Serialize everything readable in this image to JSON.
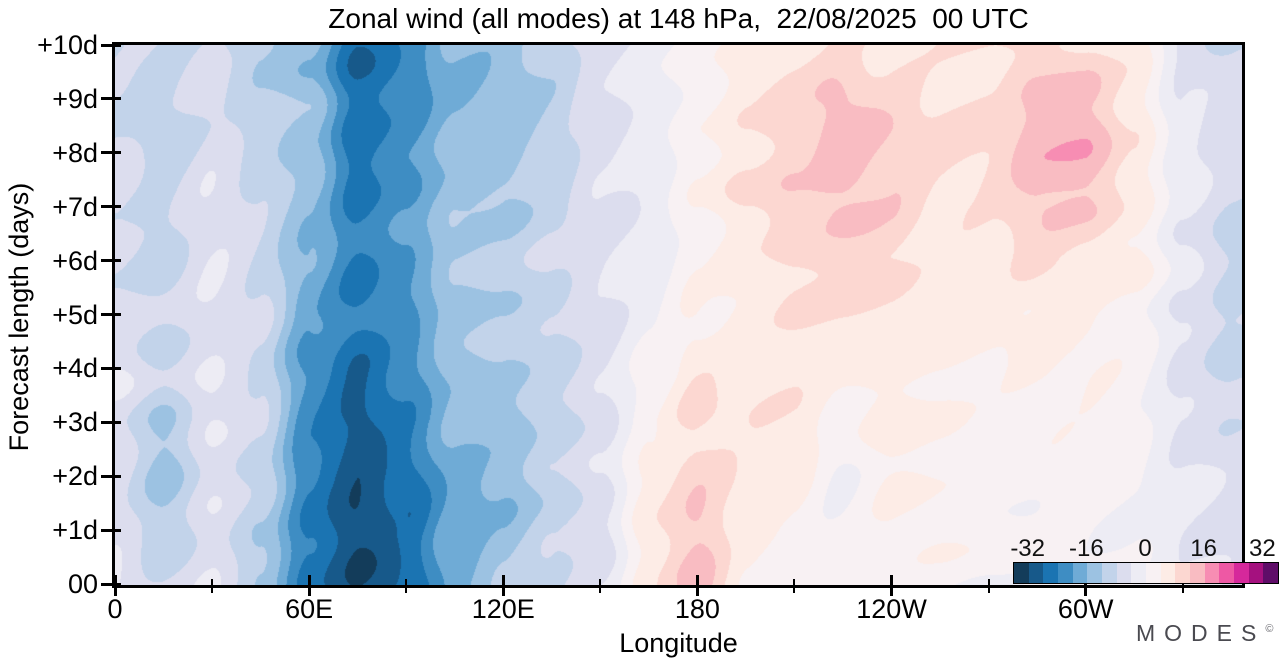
{
  "title": "Zonal wind (all modes) at 148 hPa,  22/08/2025  00 UTC",
  "branding": {
    "logo_text": "MODES",
    "logo_mark": "©"
  },
  "chart_data": {
    "type": "heatmap",
    "subtype": "filled-contour-hovmoller",
    "title": "Zonal wind (all modes) at 148 hPa,  22/08/2025  00 UTC",
    "xlabel": "Longitude",
    "ylabel": "Forecast length (days)",
    "xlim": [
      0,
      348
    ],
    "ylim": [
      0,
      10
    ],
    "grid_lines": false,
    "x_ticks": [
      {
        "lon": 0,
        "label": "0"
      },
      {
        "lon": 60,
        "label": "60E"
      },
      {
        "lon": 120,
        "label": "120E"
      },
      {
        "lon": 180,
        "label": "180"
      },
      {
        "lon": 240,
        "label": "120W"
      },
      {
        "lon": 300,
        "label": "60W"
      }
    ],
    "x_minor_ticks": [
      30,
      90,
      150,
      210,
      270,
      330
    ],
    "y_ticks": [
      {
        "day": 10,
        "label": "+10d"
      },
      {
        "day": 9,
        "label": "+9d"
      },
      {
        "day": 8,
        "label": "+8d"
      },
      {
        "day": 7,
        "label": "+7d"
      },
      {
        "day": 6,
        "label": "+6d"
      },
      {
        "day": 5,
        "label": "+5d"
      },
      {
        "day": 4,
        "label": "+4d"
      },
      {
        "day": 3,
        "label": "+3d"
      },
      {
        "day": 2,
        "label": "+2d"
      },
      {
        "day": 1,
        "label": "+1d"
      },
      {
        "day": 0,
        "label": "00"
      }
    ],
    "levels": {
      "min": -36,
      "max": 36,
      "step": 4
    },
    "palette": [
      "#133c5a",
      "#17598a",
      "#1b74b2",
      "#3e8dc3",
      "#6fabd6",
      "#9cc2e2",
      "#c2d3ea",
      "#dcddee",
      "#edecf4",
      "#f8f1f3",
      "#fdece6",
      "#fcd7d1",
      "#f9bcc2",
      "#f78db3",
      "#ee58a4",
      "#d6289b",
      "#a5117f",
      "#5f0d68"
    ],
    "colorbar": {
      "ticks": [
        -32,
        -16,
        0,
        16,
        32
      ],
      "labels": [
        "-32",
        "-16",
        "0",
        "16",
        "32"
      ],
      "position": "inset-bottom-right"
    },
    "grid": {
      "lons": [
        0,
        15,
        30,
        45,
        60,
        75,
        90,
        105,
        120,
        135,
        150,
        165,
        180,
        195,
        210,
        225,
        240,
        255,
        270,
        285,
        300,
        315,
        330,
        345
      ],
      "days": [
        0,
        1,
        2,
        3,
        4,
        5,
        6,
        7,
        8,
        9,
        10
      ],
      "values": [
        [
          -4,
          -8,
          -4,
          -12,
          -25,
          -31,
          -28,
          -17,
          -13,
          -8,
          -4,
          6,
          13,
          4,
          3,
          2,
          2,
          2,
          1,
          1,
          0,
          -1,
          -3,
          -4
        ],
        [
          -5,
          -11,
          -5,
          -12,
          -25,
          -33,
          -27,
          -18,
          -15,
          -9,
          -5,
          7,
          12,
          5,
          4,
          0,
          3,
          3,
          2,
          1,
          1,
          0,
          -3,
          -5
        ],
        [
          -6,
          -13,
          -5,
          -10,
          -24,
          -30,
          -26,
          -18,
          -16,
          -10,
          -5,
          5,
          10,
          7,
          6,
          0,
          4,
          3,
          3,
          2,
          1,
          0,
          -3,
          -5
        ],
        [
          -5,
          -12,
          -4,
          -9,
          -23,
          -29,
          -24,
          -16,
          -14,
          -9,
          -5,
          3,
          9,
          7,
          7,
          2,
          5,
          4,
          3,
          3,
          2,
          1,
          -4,
          -7
        ],
        [
          -4,
          -9,
          -4,
          -8,
          -21,
          -27,
          -22,
          -15,
          -12,
          -9,
          -5,
          0,
          7,
          6,
          7,
          5,
          6,
          5,
          4,
          4,
          3,
          2,
          -4,
          -9
        ],
        [
          -5,
          -8,
          -5,
          -8,
          -19,
          -25,
          -21,
          -13,
          -11,
          -8,
          -5,
          -2,
          4,
          6,
          8,
          7,
          7,
          6,
          5,
          6,
          5,
          3,
          -4,
          -9
        ],
        [
          -7,
          -10,
          -5,
          -8,
          -16,
          -24,
          -20,
          -12,
          -11,
          -8,
          -5,
          -2,
          3,
          7,
          9,
          9,
          9,
          7,
          6,
          8,
          7,
          5,
          -3,
          -9
        ],
        [
          -6,
          -9,
          -5,
          -9,
          -14,
          -25,
          -21,
          -13,
          -12,
          -9,
          -5,
          -3,
          3,
          8,
          11,
          12,
          11,
          8,
          8,
          12,
          12,
          7,
          -3,
          -8
        ],
        [
          -6,
          -11,
          -6,
          -9,
          -13,
          -26,
          -22,
          -15,
          -13,
          -10,
          -6,
          -3,
          4,
          8,
          11,
          15,
          12,
          9,
          9,
          14,
          15,
          8,
          -2,
          -7
        ],
        [
          -8,
          -10,
          -7,
          -11,
          -14,
          -27,
          -23,
          -16,
          -14,
          -11,
          -6,
          -2,
          3,
          7,
          9,
          13,
          10,
          8,
          8,
          13,
          14,
          7,
          -4,
          -7
        ],
        [
          -9,
          -9,
          -7,
          -12,
          -15,
          -28,
          -23,
          -16,
          -15,
          -10,
          -6,
          -2,
          3,
          5,
          7,
          8,
          8,
          7,
          7,
          9,
          8,
          5,
          -5,
          -9
        ]
      ]
    }
  }
}
